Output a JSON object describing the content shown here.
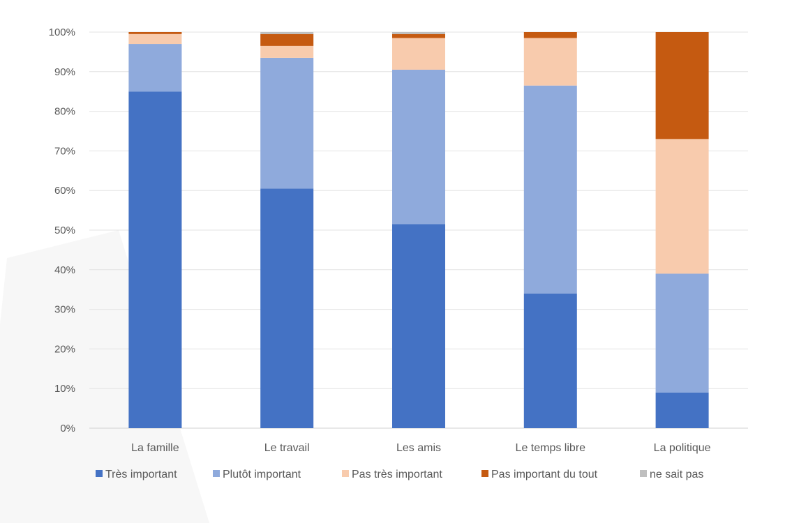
{
  "chart_data": {
    "type": "bar",
    "stacked": true,
    "percent_stacked": true,
    "categories": [
      "La famille",
      "Le travail",
      "Les amis",
      "Le temps libre",
      "La politique"
    ],
    "series": [
      {
        "name": "Très important",
        "color": "#4472C4",
        "values": [
          85,
          60.5,
          51.5,
          34,
          9
        ]
      },
      {
        "name": "Plutôt important",
        "color": "#8FAADC",
        "values": [
          12,
          33,
          39,
          52.5,
          30
        ]
      },
      {
        "name": "Pas très important",
        "color": "#F8CBAD",
        "values": [
          2.5,
          3,
          8,
          12,
          34
        ]
      },
      {
        "name": "Pas important du tout",
        "color": "#C55A11",
        "values": [
          0.5,
          3,
          1,
          1.5,
          27
        ]
      },
      {
        "name": "ne sait pas",
        "color": "#BFBFBF",
        "values": [
          0,
          0.5,
          0.5,
          0,
          0
        ]
      }
    ],
    "yticks": [
      "0%",
      "10%",
      "20%",
      "30%",
      "40%",
      "50%",
      "60%",
      "70%",
      "80%",
      "90%",
      "100%"
    ],
    "ylim": [
      0,
      100
    ],
    "grid": true,
    "legend_position": "bottom"
  }
}
